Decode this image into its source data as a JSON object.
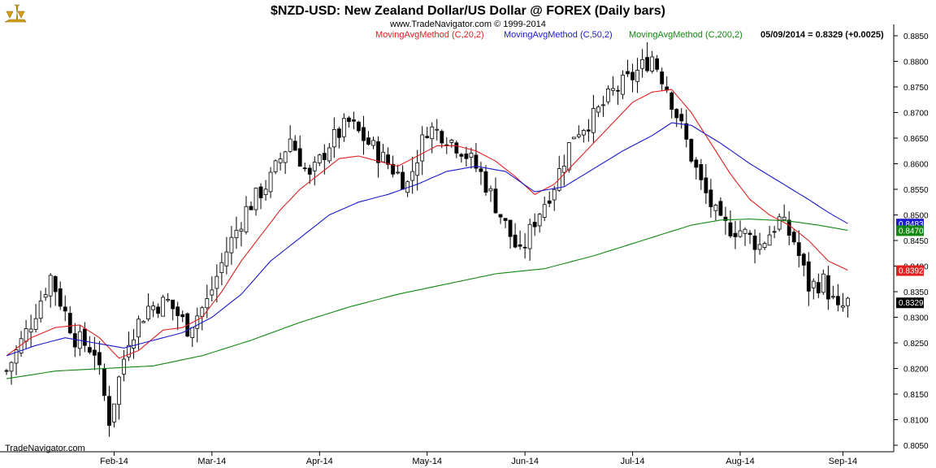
{
  "header": {
    "title": "$NZD-USD:  New Zealand Dollar/US Dollar @ FOREX  (Daily bars)",
    "copyright": "www.TradeNavigator.com © 1999-2014",
    "footer_brand": "TradeNavigator.com",
    "logo_icon": "gold-scales-icon"
  },
  "legend": {
    "ma20": "MovingAvgMethod (C,20,2)",
    "ma50": "MovingAvgMethod (C,50,2)",
    "ma200": "MovingAvgMethod (C,200,2)",
    "last": "05/09/2014 = 0.8329 (+0.0025)"
  },
  "colors": {
    "ma20": "#e02020",
    "ma50": "#1a1acc",
    "ma200": "#118811",
    "last_tag": "#000000",
    "bars": "#000000"
  },
  "chart_data": {
    "type": "candlestick",
    "x_axis": {
      "tick_labels": [
        "Feb-14",
        "Mar-14",
        "Apr-14",
        "May-14",
        "Jun-14",
        "Jul-14",
        "Aug-14",
        "Sep-14"
      ],
      "tick_index": [
        22,
        42,
        64,
        86,
        106,
        128,
        150,
        171
      ]
    },
    "y_axis": {
      "range": [
        0.805,
        0.885
      ],
      "ticks": [
        "0.8850",
        "0.8800",
        "0.8750",
        "0.8700",
        "0.8650",
        "0.8600",
        "0.8550",
        "0.8500",
        "0.8450",
        "0.8400",
        "0.8350",
        "0.8300",
        "0.8250",
        "0.8200",
        "0.8150",
        "0.8100",
        "0.8050"
      ],
      "side": "right"
    },
    "last_values": {
      "ma50": "0.8483",
      "ma200": "0.8470",
      "ma20": "0.8392",
      "close": "0.8329"
    },
    "series": [
      {
        "name": "$NZD-USD",
        "kind": "close",
        "points": [
          {
            "i": 0,
            "v": 0.8195
          },
          {
            "i": 5,
            "v": 0.829
          },
          {
            "i": 9,
            "v": 0.838
          },
          {
            "i": 14,
            "v": 0.826
          },
          {
            "i": 18,
            "v": 0.8235
          },
          {
            "i": 21,
            "v": 0.81
          },
          {
            "i": 25,
            "v": 0.826
          },
          {
            "i": 29,
            "v": 0.832
          },
          {
            "i": 33,
            "v": 0.833
          },
          {
            "i": 37,
            "v": 0.828
          },
          {
            "i": 41,
            "v": 0.833
          },
          {
            "i": 45,
            "v": 0.843
          },
          {
            "i": 49,
            "v": 0.851
          },
          {
            "i": 54,
            "v": 0.857
          },
          {
            "i": 58,
            "v": 0.865
          },
          {
            "i": 62,
            "v": 0.857
          },
          {
            "i": 66,
            "v": 0.864
          },
          {
            "i": 70,
            "v": 0.868
          },
          {
            "i": 74,
            "v": 0.864
          },
          {
            "i": 78,
            "v": 0.86
          },
          {
            "i": 82,
            "v": 0.856
          },
          {
            "i": 86,
            "v": 0.867
          },
          {
            "i": 89,
            "v": 0.866
          },
          {
            "i": 93,
            "v": 0.863
          },
          {
            "i": 97,
            "v": 0.858
          },
          {
            "i": 101,
            "v": 0.85
          },
          {
            "i": 105,
            "v": 0.842
          },
          {
            "i": 108,
            "v": 0.849
          },
          {
            "i": 112,
            "v": 0.856
          },
          {
            "i": 116,
            "v": 0.866
          },
          {
            "i": 120,
            "v": 0.869
          },
          {
            "i": 124,
            "v": 0.874
          },
          {
            "i": 128,
            "v": 0.877
          },
          {
            "i": 132,
            "v": 0.881
          },
          {
            "i": 135,
            "v": 0.875
          },
          {
            "i": 138,
            "v": 0.867
          },
          {
            "i": 142,
            "v": 0.856
          },
          {
            "i": 146,
            "v": 0.848
          },
          {
            "i": 150,
            "v": 0.847
          },
          {
            "i": 154,
            "v": 0.844
          },
          {
            "i": 158,
            "v": 0.849
          },
          {
            "i": 161,
            "v": 0.845
          },
          {
            "i": 164,
            "v": 0.836
          },
          {
            "i": 167,
            "v": 0.837
          },
          {
            "i": 170,
            "v": 0.831
          },
          {
            "i": 172,
            "v": 0.8329
          }
        ]
      },
      {
        "name": "MovingAvgMethod (C,20,2)",
        "points": [
          {
            "i": 0,
            "v": 0.8225
          },
          {
            "i": 5,
            "v": 0.826
          },
          {
            "i": 10,
            "v": 0.828
          },
          {
            "i": 15,
            "v": 0.8285
          },
          {
            "i": 19,
            "v": 0.826
          },
          {
            "i": 23,
            "v": 0.822
          },
          {
            "i": 27,
            "v": 0.8235
          },
          {
            "i": 32,
            "v": 0.8275
          },
          {
            "i": 36,
            "v": 0.828
          },
          {
            "i": 40,
            "v": 0.83
          },
          {
            "i": 44,
            "v": 0.835
          },
          {
            "i": 48,
            "v": 0.841
          },
          {
            "i": 52,
            "v": 0.846
          },
          {
            "i": 56,
            "v": 0.851
          },
          {
            "i": 60,
            "v": 0.855
          },
          {
            "i": 64,
            "v": 0.858
          },
          {
            "i": 68,
            "v": 0.861
          },
          {
            "i": 72,
            "v": 0.8615
          },
          {
            "i": 76,
            "v": 0.8605
          },
          {
            "i": 80,
            "v": 0.8595
          },
          {
            "i": 84,
            "v": 0.8615
          },
          {
            "i": 88,
            "v": 0.8635
          },
          {
            "i": 92,
            "v": 0.8635
          },
          {
            "i": 96,
            "v": 0.8625
          },
          {
            "i": 100,
            "v": 0.8605
          },
          {
            "i": 104,
            "v": 0.8575
          },
          {
            "i": 108,
            "v": 0.854
          },
          {
            "i": 112,
            "v": 0.856
          },
          {
            "i": 116,
            "v": 0.86
          },
          {
            "i": 120,
            "v": 0.864
          },
          {
            "i": 124,
            "v": 0.868
          },
          {
            "i": 128,
            "v": 0.872
          },
          {
            "i": 132,
            "v": 0.874
          },
          {
            "i": 136,
            "v": 0.8745
          },
          {
            "i": 140,
            "v": 0.87
          },
          {
            "i": 144,
            "v": 0.864
          },
          {
            "i": 148,
            "v": 0.858
          },
          {
            "i": 152,
            "v": 0.853
          },
          {
            "i": 156,
            "v": 0.85
          },
          {
            "i": 160,
            "v": 0.848
          },
          {
            "i": 164,
            "v": 0.845
          },
          {
            "i": 168,
            "v": 0.841
          },
          {
            "i": 172,
            "v": 0.8392
          }
        ]
      },
      {
        "name": "MovingAvgMethod (C,50,2)",
        "points": [
          {
            "i": 0,
            "v": 0.8225
          },
          {
            "i": 6,
            "v": 0.8245
          },
          {
            "i": 12,
            "v": 0.826
          },
          {
            "i": 18,
            "v": 0.825
          },
          {
            "i": 24,
            "v": 0.824
          },
          {
            "i": 30,
            "v": 0.8255
          },
          {
            "i": 36,
            "v": 0.827
          },
          {
            "i": 42,
            "v": 0.83
          },
          {
            "i": 48,
            "v": 0.8345
          },
          {
            "i": 54,
            "v": 0.841
          },
          {
            "i": 60,
            "v": 0.8455
          },
          {
            "i": 66,
            "v": 0.85
          },
          {
            "i": 72,
            "v": 0.8525
          },
          {
            "i": 78,
            "v": 0.854
          },
          {
            "i": 84,
            "v": 0.856
          },
          {
            "i": 90,
            "v": 0.8585
          },
          {
            "i": 96,
            "v": 0.8595
          },
          {
            "i": 102,
            "v": 0.8585
          },
          {
            "i": 108,
            "v": 0.8545
          },
          {
            "i": 114,
            "v": 0.8555
          },
          {
            "i": 120,
            "v": 0.859
          },
          {
            "i": 126,
            "v": 0.8625
          },
          {
            "i": 132,
            "v": 0.8655
          },
          {
            "i": 136,
            "v": 0.868
          },
          {
            "i": 140,
            "v": 0.8675
          },
          {
            "i": 146,
            "v": 0.864
          },
          {
            "i": 152,
            "v": 0.86
          },
          {
            "i": 158,
            "v": 0.8565
          },
          {
            "i": 164,
            "v": 0.853
          },
          {
            "i": 168,
            "v": 0.8505
          },
          {
            "i": 172,
            "v": 0.8483
          }
        ]
      },
      {
        "name": "MovingAvgMethod (C,200,2)",
        "points": [
          {
            "i": 0,
            "v": 0.818
          },
          {
            "i": 10,
            "v": 0.8195
          },
          {
            "i": 20,
            "v": 0.82
          },
          {
            "i": 30,
            "v": 0.8205
          },
          {
            "i": 40,
            "v": 0.8225
          },
          {
            "i": 50,
            "v": 0.8255
          },
          {
            "i": 60,
            "v": 0.829
          },
          {
            "i": 70,
            "v": 0.832
          },
          {
            "i": 80,
            "v": 0.8345
          },
          {
            "i": 90,
            "v": 0.8365
          },
          {
            "i": 100,
            "v": 0.8385
          },
          {
            "i": 110,
            "v": 0.8395
          },
          {
            "i": 120,
            "v": 0.842
          },
          {
            "i": 130,
            "v": 0.845
          },
          {
            "i": 140,
            "v": 0.848
          },
          {
            "i": 146,
            "v": 0.849
          },
          {
            "i": 152,
            "v": 0.8492
          },
          {
            "i": 160,
            "v": 0.8488
          },
          {
            "i": 166,
            "v": 0.848
          },
          {
            "i": 172,
            "v": 0.847
          }
        ]
      }
    ]
  }
}
